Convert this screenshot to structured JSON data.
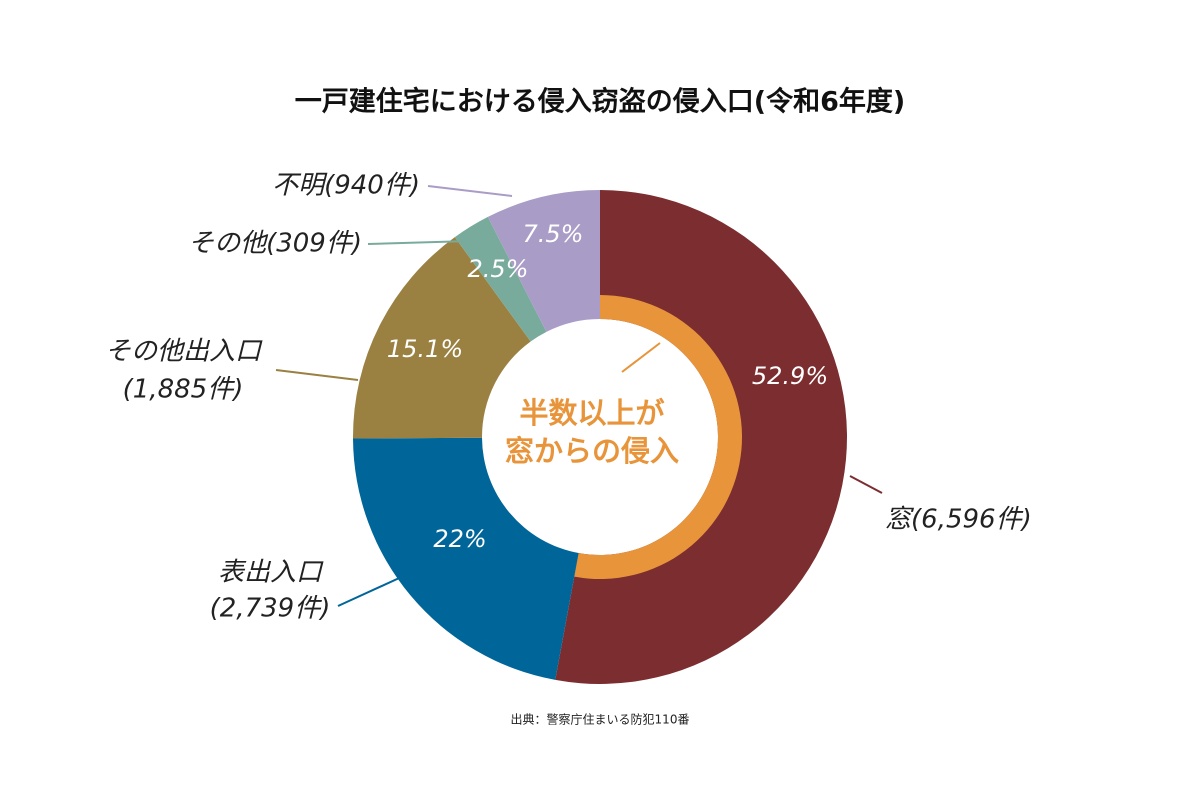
{
  "chart_data": {
    "type": "donut",
    "title": "一戸建住宅における侵入窃盗の侵入口(令和6年度)",
    "categories": [
      [
        "窓(6,596件)"
      ],
      [
        "表出入口",
        "(2,739件)"
      ],
      [
        "その他出入口",
        "(1,885件)"
      ],
      [
        "その他(309件)"
      ],
      [
        "不明(940件)"
      ]
    ],
    "values": [
      52.9,
      22,
      15.1,
      2.5,
      7.5
    ],
    "value_labels": [
      "52.9%",
      "22%",
      "15.1%",
      "2.5%",
      "7.5%"
    ],
    "colors": [
      "#7b2d30",
      "#006699",
      "#9a8142",
      "#79ab9c",
      "#a99cc6"
    ],
    "center_text": [
      "半数以上が",
      "窓からの侵入"
    ],
    "highlight_color": "#e8943a",
    "source": "出典：警察庁住まいる防犯110番"
  }
}
